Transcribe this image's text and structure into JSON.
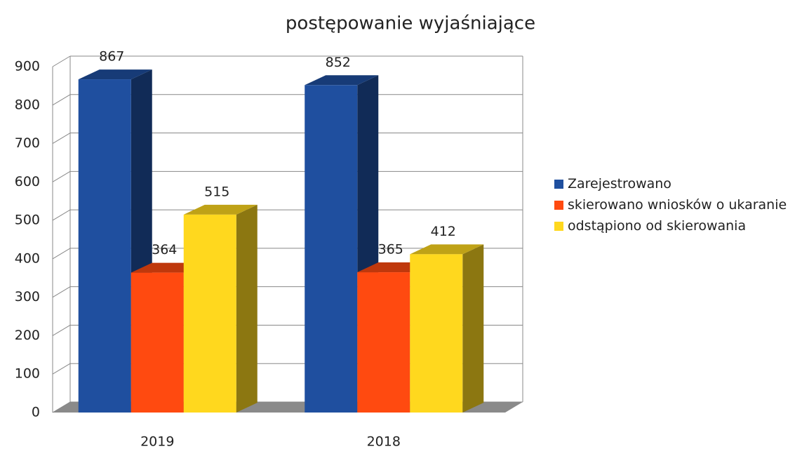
{
  "chart_data": {
    "type": "bar3d",
    "title": "postępowanie wyjaśniające",
    "categories": [
      "2019",
      "2018"
    ],
    "series": [
      {
        "name": "Zarejestrowano",
        "color": "#1f4f9f",
        "values": [
          867,
          852
        ]
      },
      {
        "name": "skierowano wniosków o ukaranie",
        "color": "#ff4a10",
        "values": [
          364,
          365
        ]
      },
      {
        "name": "odstąpiono od skierowania",
        "color": "#ffd81e",
        "values": [
          515,
          412
        ]
      }
    ],
    "ylim": [
      0,
      900
    ],
    "yticks": [
      0,
      100,
      200,
      300,
      400,
      500,
      600,
      700,
      800,
      900
    ],
    "grid": true,
    "legend": "right"
  }
}
